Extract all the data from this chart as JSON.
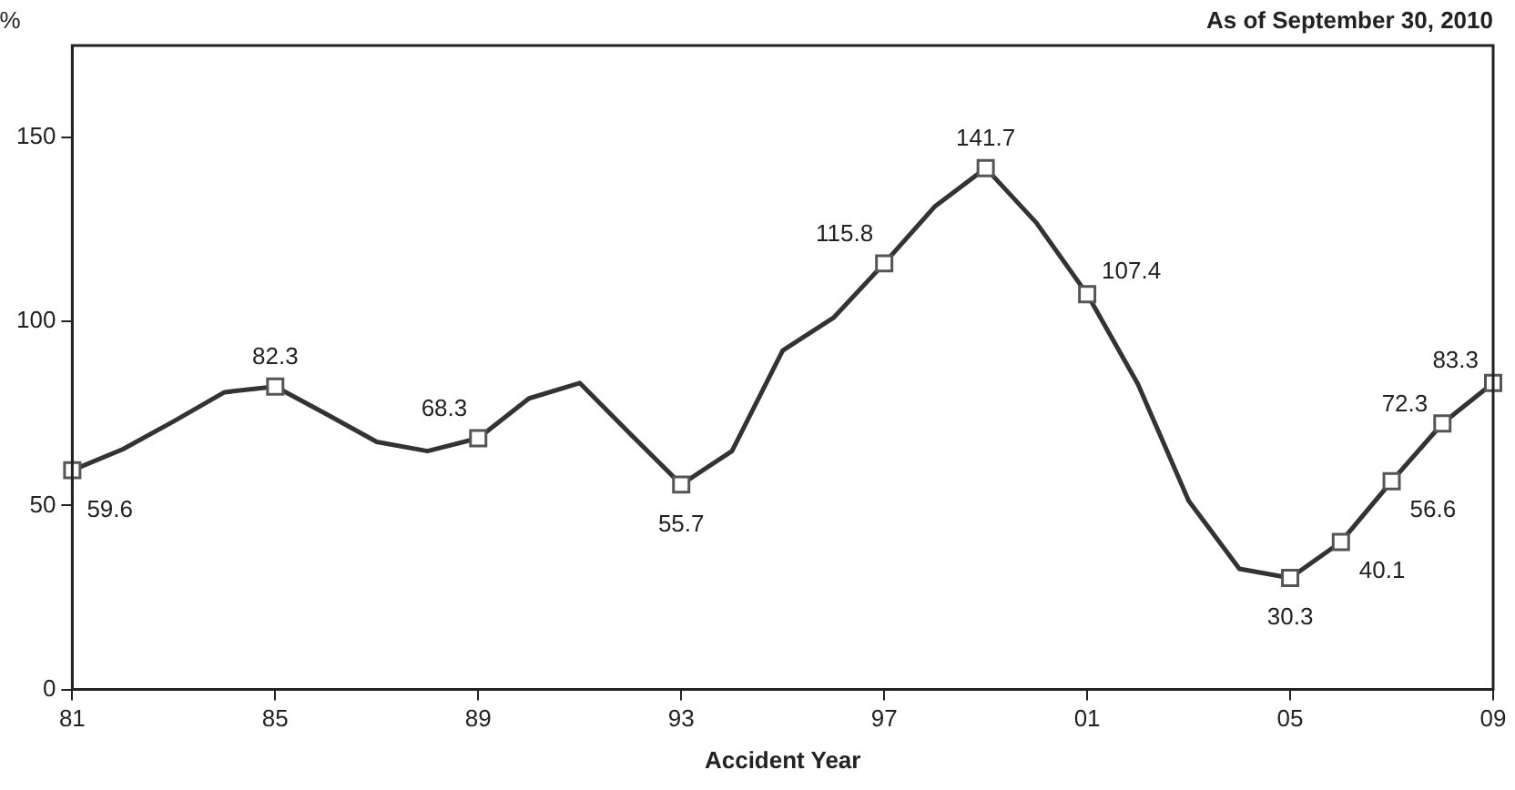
{
  "chart_data": {
    "type": "line",
    "title": "As of September 30, 2010",
    "ylabel": "%",
    "xlabel": "Accident Year",
    "x": [
      1981,
      1982,
      1983,
      1984,
      1985,
      1986,
      1987,
      1988,
      1989,
      1990,
      1991,
      1992,
      1993,
      1994,
      1995,
      1996,
      1997,
      1998,
      1999,
      2000,
      2001,
      2002,
      2003,
      2004,
      2005,
      2006,
      2007,
      2008,
      2009
    ],
    "values": [
      59.6,
      65.3,
      72.9,
      80.8,
      82.3,
      74.9,
      67.3,
      64.8,
      68.3,
      79.1,
      83.3,
      69.4,
      55.7,
      64.8,
      92.1,
      101.0,
      115.8,
      131.3,
      141.7,
      126.8,
      107.4,
      83.0,
      51.3,
      32.8,
      30.3,
      40.1,
      56.6,
      72.3,
      83.3
    ],
    "value_labels": [
      "59.6",
      null,
      null,
      null,
      "82.3",
      null,
      null,
      null,
      "68.3",
      null,
      null,
      null,
      "55.7",
      null,
      null,
      null,
      "115.8",
      null,
      "141.7",
      null,
      "107.4",
      null,
      null,
      null,
      "30.3",
      "40.1",
      "56.6",
      "72.3",
      "83.3"
    ],
    "color": "#333333",
    "line_style": "solid",
    "grid": false,
    "legend": false,
    "xlim": [
      1981,
      2009
    ],
    "xticks": [
      {
        "value": 1981,
        "label": "81"
      },
      {
        "value": 1985,
        "label": "85"
      },
      {
        "value": 1989,
        "label": "89"
      },
      {
        "value": 1993,
        "label": "93"
      },
      {
        "value": 1997,
        "label": "97"
      },
      {
        "value": 2001,
        "label": "01"
      },
      {
        "value": 2005,
        "label": "05"
      },
      {
        "value": 2009,
        "label": "09"
      }
    ],
    "ylim": [
      0,
      175
    ],
    "yticks": [
      0,
      50,
      100,
      150
    ]
  }
}
